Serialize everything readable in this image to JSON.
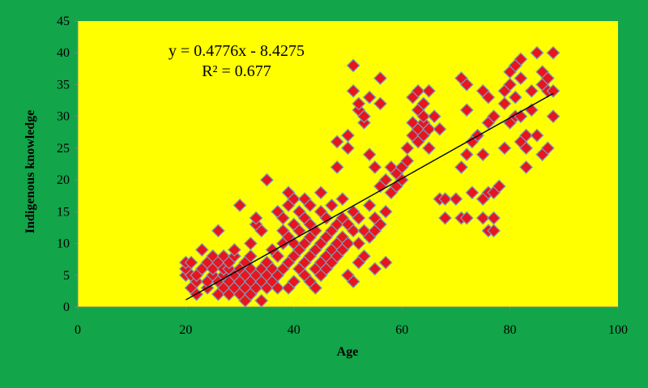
{
  "colors": {
    "chart_background": "#12a54a",
    "plot_background": "#ffff00",
    "marker_fill": "#e8141e",
    "marker_edge": "#7a9ab8",
    "trendline": "#000000"
  },
  "chart_data": {
    "type": "scatter",
    "title": "",
    "xlabel": "Age",
    "ylabel": "Indigenous knowledge",
    "xlim": [
      0,
      100
    ],
    "ylim": [
      0,
      45
    ],
    "x_ticks": [
      "0",
      "20",
      "40",
      "60",
      "80",
      "100"
    ],
    "y_ticks": [
      "0",
      "5",
      "10",
      "15",
      "20",
      "25",
      "30",
      "35",
      "40",
      "45"
    ],
    "grid": false,
    "legend": "none",
    "marker": "diamond",
    "trendline": {
      "type": "linear",
      "slope": 0.4776,
      "intercept": -8.4275,
      "x_range": [
        20,
        88
      ],
      "equation_label": "y = 0.4776x - 8.4275",
      "r2_label": "R² = 0.677"
    },
    "series": [
      {
        "points": [
          [
            20,
            5
          ],
          [
            20,
            6
          ],
          [
            20,
            7
          ],
          [
            21,
            3
          ],
          [
            21,
            5
          ],
          [
            21,
            7
          ],
          [
            22,
            2
          ],
          [
            22,
            4
          ],
          [
            22,
            5
          ],
          [
            23,
            9
          ],
          [
            23,
            6
          ],
          [
            24,
            3
          ],
          [
            24,
            4
          ],
          [
            24,
            7
          ],
          [
            25,
            5
          ],
          [
            25,
            6
          ],
          [
            25,
            8
          ],
          [
            26,
            2
          ],
          [
            26,
            4
          ],
          [
            26,
            7
          ],
          [
            26,
            12
          ],
          [
            27,
            3
          ],
          [
            27,
            5
          ],
          [
            27,
            6
          ],
          [
            27,
            8
          ],
          [
            28,
            2
          ],
          [
            28,
            4
          ],
          [
            28,
            6
          ],
          [
            28,
            7
          ],
          [
            29,
            3
          ],
          [
            29,
            5
          ],
          [
            29,
            8
          ],
          [
            29,
            9
          ],
          [
            30,
            2
          ],
          [
            30,
            4
          ],
          [
            30,
            6
          ],
          [
            30,
            16
          ],
          [
            31,
            1
          ],
          [
            31,
            3
          ],
          [
            31,
            5
          ],
          [
            31,
            7
          ],
          [
            32,
            2
          ],
          [
            32,
            4
          ],
          [
            32,
            6
          ],
          [
            32,
            8
          ],
          [
            32,
            10
          ],
          [
            33,
            3
          ],
          [
            33,
            5
          ],
          [
            33,
            13
          ],
          [
            33,
            14
          ],
          [
            34,
            1
          ],
          [
            34,
            4
          ],
          [
            34,
            6
          ],
          [
            34,
            12
          ],
          [
            35,
            3
          ],
          [
            35,
            5
          ],
          [
            35,
            7
          ],
          [
            35,
            20
          ],
          [
            36,
            4
          ],
          [
            36,
            6
          ],
          [
            36,
            9
          ],
          [
            37,
            3
          ],
          [
            37,
            5
          ],
          [
            37,
            8
          ],
          [
            37,
            15
          ],
          [
            38,
            6
          ],
          [
            38,
            10
          ],
          [
            38,
            12
          ],
          [
            38,
            14
          ],
          [
            39,
            3
          ],
          [
            39,
            7
          ],
          [
            39,
            11
          ],
          [
            39,
            16
          ],
          [
            39,
            18
          ],
          [
            40,
            4
          ],
          [
            40,
            8
          ],
          [
            40,
            10
          ],
          [
            40,
            13
          ],
          [
            40,
            17
          ],
          [
            41,
            6
          ],
          [
            41,
            9
          ],
          [
            41,
            12
          ],
          [
            41,
            15
          ],
          [
            42,
            5
          ],
          [
            42,
            7
          ],
          [
            42,
            10
          ],
          [
            42,
            14
          ],
          [
            42,
            17
          ],
          [
            43,
            4
          ],
          [
            43,
            8
          ],
          [
            43,
            11
          ],
          [
            43,
            13
          ],
          [
            43,
            16
          ],
          [
            44,
            3
          ],
          [
            44,
            6
          ],
          [
            44,
            9
          ],
          [
            44,
            12
          ],
          [
            45,
            5
          ],
          [
            45,
            7
          ],
          [
            45,
            10
          ],
          [
            45,
            15
          ],
          [
            45,
            18
          ],
          [
            46,
            6
          ],
          [
            46,
            8
          ],
          [
            46,
            11
          ],
          [
            46,
            14
          ],
          [
            47,
            7
          ],
          [
            47,
            9
          ],
          [
            47,
            12
          ],
          [
            47,
            16
          ],
          [
            48,
            8
          ],
          [
            48,
            10
          ],
          [
            48,
            13
          ],
          [
            48,
            22
          ],
          [
            48,
            26
          ],
          [
            49,
            9
          ],
          [
            49,
            11
          ],
          [
            49,
            14
          ],
          [
            49,
            17
          ],
          [
            50,
            5
          ],
          [
            50,
            10
          ],
          [
            50,
            13
          ],
          [
            50,
            25
          ],
          [
            50,
            27
          ],
          [
            51,
            4
          ],
          [
            51,
            12
          ],
          [
            51,
            15
          ],
          [
            51,
            34
          ],
          [
            51,
            38
          ],
          [
            52,
            7
          ],
          [
            52,
            10
          ],
          [
            52,
            14
          ],
          [
            52,
            31
          ],
          [
            52,
            32
          ],
          [
            53,
            8
          ],
          [
            53,
            12
          ],
          [
            53,
            29
          ],
          [
            53,
            30
          ],
          [
            54,
            11
          ],
          [
            54,
            16
          ],
          [
            54,
            24
          ],
          [
            54,
            33
          ],
          [
            55,
            6
          ],
          [
            55,
            12
          ],
          [
            55,
            14
          ],
          [
            55,
            22
          ],
          [
            56,
            13
          ],
          [
            56,
            19
          ],
          [
            56,
            32
          ],
          [
            56,
            36
          ],
          [
            57,
            7
          ],
          [
            57,
            15
          ],
          [
            57,
            20
          ],
          [
            58,
            18
          ],
          [
            58,
            22
          ],
          [
            59,
            19
          ],
          [
            59,
            21
          ],
          [
            60,
            20
          ],
          [
            60,
            22
          ],
          [
            61,
            23
          ],
          [
            61,
            25
          ],
          [
            62,
            27
          ],
          [
            62,
            29
          ],
          [
            62,
            33
          ],
          [
            63,
            26
          ],
          [
            63,
            28
          ],
          [
            63,
            31
          ],
          [
            63,
            34
          ],
          [
            64,
            27
          ],
          [
            64,
            29
          ],
          [
            64,
            30
          ],
          [
            64,
            32
          ],
          [
            65,
            25
          ],
          [
            65,
            28
          ],
          [
            65,
            34
          ],
          [
            66,
            30
          ],
          [
            67,
            17
          ],
          [
            67,
            28
          ],
          [
            68,
            14
          ],
          [
            68,
            17
          ],
          [
            70,
            17
          ],
          [
            71,
            14
          ],
          [
            71,
            22
          ],
          [
            71,
            36
          ],
          [
            72,
            14
          ],
          [
            72,
            24
          ],
          [
            72,
            31
          ],
          [
            72,
            35
          ],
          [
            73,
            18
          ],
          [
            73,
            26
          ],
          [
            74,
            27
          ],
          [
            75,
            14
          ],
          [
            75,
            17
          ],
          [
            75,
            24
          ],
          [
            75,
            34
          ],
          [
            76,
            12
          ],
          [
            76,
            18
          ],
          [
            76,
            29
          ],
          [
            76,
            33
          ],
          [
            77,
            12
          ],
          [
            77,
            14
          ],
          [
            77,
            18
          ],
          [
            77,
            30
          ],
          [
            78,
            19
          ],
          [
            79,
            25
          ],
          [
            79,
            32
          ],
          [
            79,
            34
          ],
          [
            80,
            29
          ],
          [
            80,
            35
          ],
          [
            80,
            37
          ],
          [
            81,
            30
          ],
          [
            81,
            33
          ],
          [
            81,
            38
          ],
          [
            82,
            26
          ],
          [
            82,
            30
          ],
          [
            82,
            36
          ],
          [
            82,
            39
          ],
          [
            83,
            22
          ],
          [
            83,
            25
          ],
          [
            83,
            27
          ],
          [
            84,
            31
          ],
          [
            84,
            34
          ],
          [
            85,
            27
          ],
          [
            85,
            40
          ],
          [
            86,
            24
          ],
          [
            86,
            35
          ],
          [
            86,
            37
          ],
          [
            87,
            25
          ],
          [
            87,
            34
          ],
          [
            87,
            36
          ],
          [
            88,
            30
          ],
          [
            88,
            34
          ],
          [
            88,
            40
          ]
        ]
      }
    ]
  }
}
